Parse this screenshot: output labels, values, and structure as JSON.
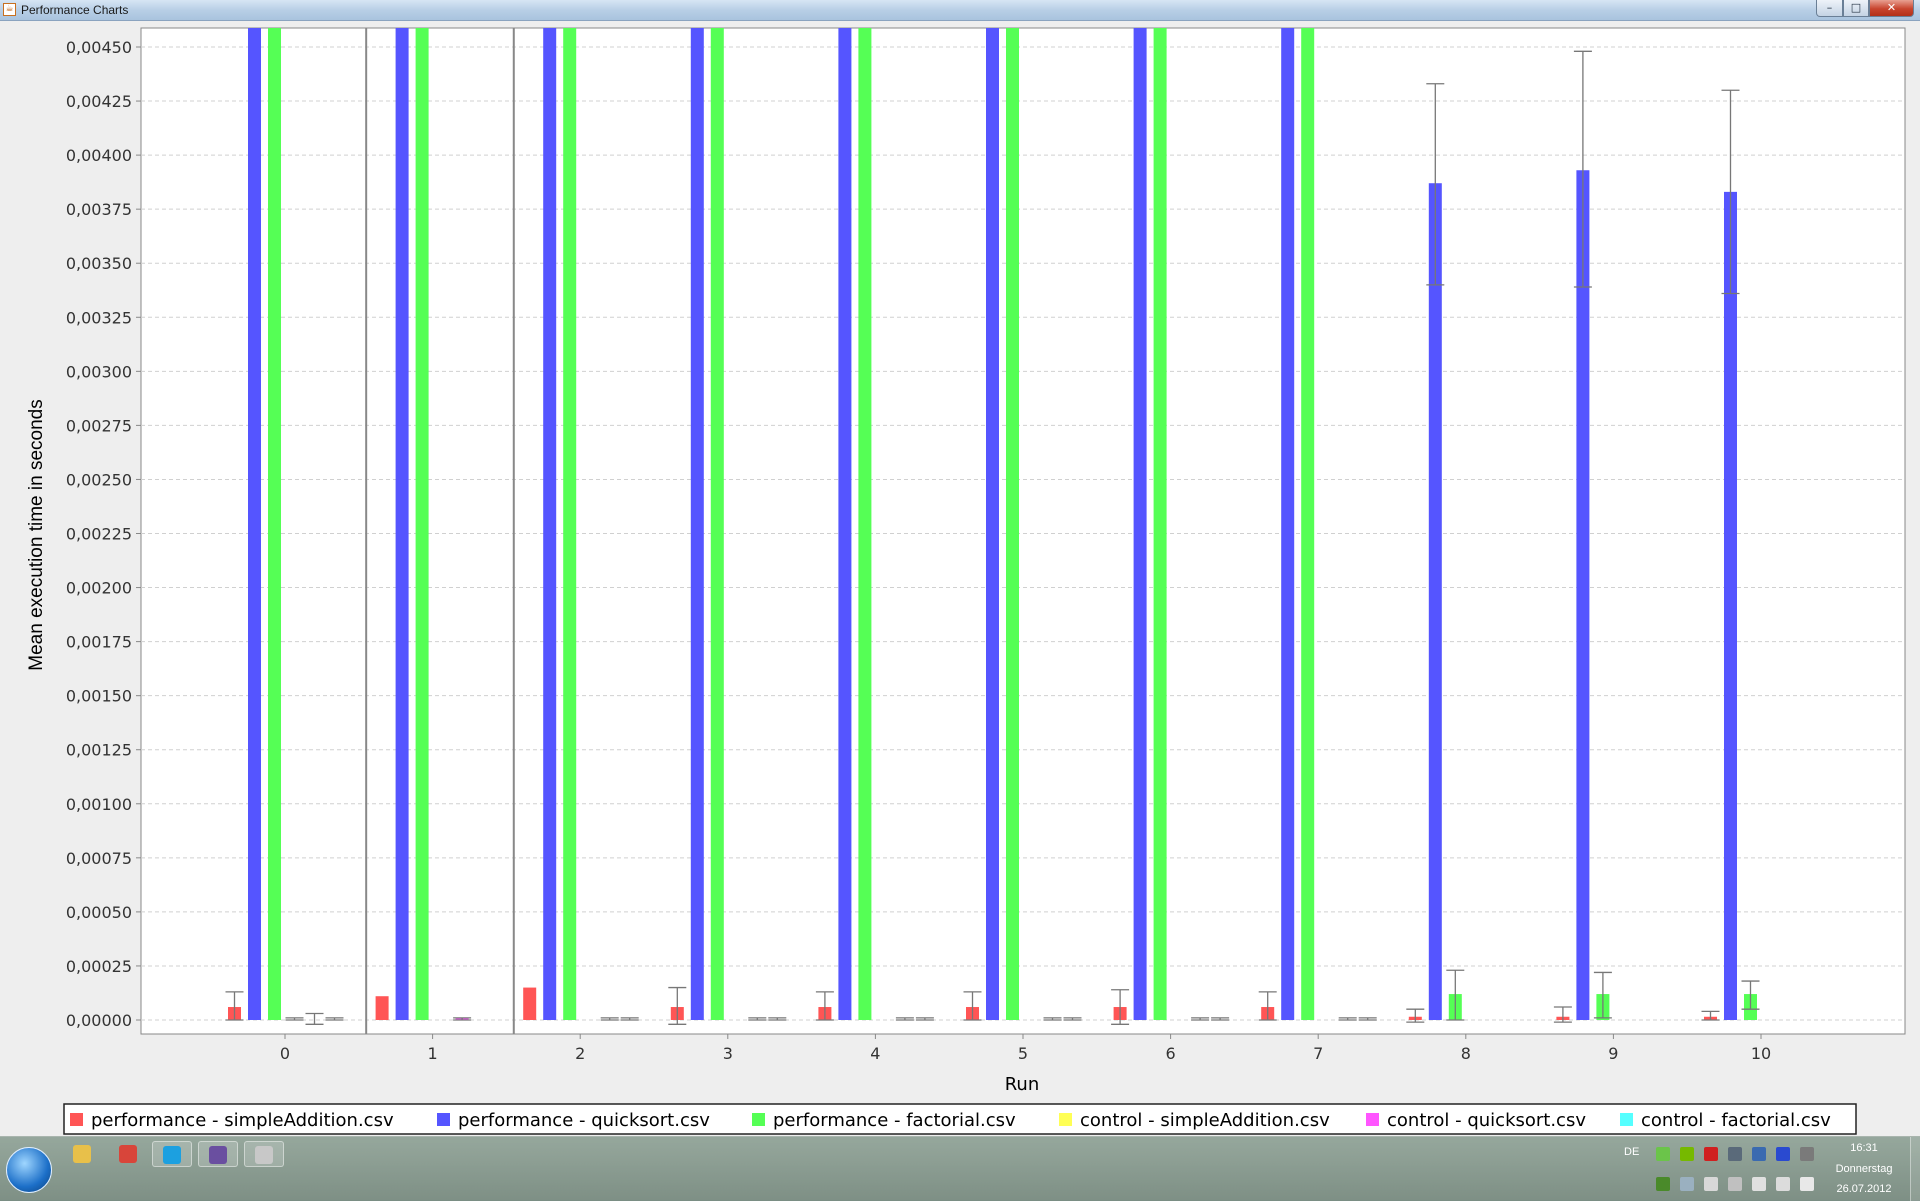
{
  "window": {
    "title": "Performance Charts",
    "minimize_glyph": "–",
    "maximize_glyph": "□",
    "close_glyph": "✕",
    "app_icon": "java-cup-icon"
  },
  "chart_data": {
    "type": "bar",
    "xlabel": "Run",
    "ylabel": "Mean execution time in seconds",
    "ylim": [
      0,
      0.0046
    ],
    "grid": true,
    "legend_position": "bottom",
    "categories": [
      "0",
      "1",
      "2",
      "3",
      "4",
      "5",
      "6",
      "7",
      "8",
      "9",
      "10"
    ],
    "yticks": [
      "0,00000",
      "0,00025",
      "0,00050",
      "0,00075",
      "0,00100",
      "0,00125",
      "0,00150",
      "0,00175",
      "0,00200",
      "0,00225",
      "0,00250",
      "0,00275",
      "0,00300",
      "0,00325",
      "0,00350",
      "0,00375",
      "0,00400",
      "0,00425",
      "0,00450"
    ],
    "series": [
      {
        "name": "performance - simpleAddition.csv",
        "color": "#ff5555",
        "values": [
          6e-05,
          0.00011,
          0.00015,
          6e-05,
          6e-05,
          6e-05,
          6e-05,
          6e-05,
          1.5e-05,
          1.5e-05,
          1.5e-05
        ],
        "err_low": [
          0,
          null,
          null,
          -2e-05,
          0,
          0,
          -2e-05,
          0,
          -1e-05,
          -1e-05,
          0
        ],
        "err_high": [
          0.00013,
          null,
          null,
          0.00015,
          0.00013,
          0.00013,
          0.00014,
          0.00013,
          5e-05,
          6e-05,
          4e-05
        ]
      },
      {
        "name": "performance - quicksort.csv",
        "color": "#5555ff",
        "values": [
          0.0047,
          0.0047,
          0.0047,
          0.0047,
          0.0047,
          0.0047,
          0.0047,
          0.0047,
          0.00387,
          0.00393,
          0.00383
        ],
        "err_low": [
          null,
          null,
          null,
          null,
          null,
          null,
          null,
          null,
          0.0034,
          0.00339,
          0.00336
        ],
        "err_high": [
          null,
          null,
          null,
          null,
          null,
          null,
          null,
          null,
          0.00433,
          0.00448,
          0.0043
        ]
      },
      {
        "name": "performance - factorial.csv",
        "color": "#55ff55",
        "values": [
          0.0047,
          0.0047,
          0.0047,
          0.0047,
          0.0047,
          0.0047,
          0.0047,
          0.0047,
          0.00012,
          0.00012,
          0.00012
        ],
        "err_low": [
          null,
          null,
          null,
          null,
          null,
          null,
          null,
          null,
          0.0,
          1e-05,
          5e-05
        ],
        "err_high": [
          null,
          null,
          null,
          null,
          null,
          null,
          null,
          null,
          0.00023,
          0.00022,
          0.00018
        ]
      },
      {
        "name": "control - simpleAddition.csv",
        "color": "#ffff55",
        "values": [
          0,
          0,
          0,
          0,
          0,
          0,
          0,
          0,
          0,
          0,
          0
        ],
        "err_low": [
          0,
          null,
          null,
          null,
          null,
          null,
          null,
          null,
          null,
          null,
          null
        ],
        "err_high": [
          1e-05,
          null,
          null,
          null,
          null,
          null,
          null,
          null,
          null,
          null,
          null
        ]
      },
      {
        "name": "control - quicksort.csv",
        "color": "#ff55ff",
        "values": [
          0,
          1e-05,
          0,
          0,
          0,
          0,
          0,
          0,
          0,
          0,
          0
        ],
        "err_low": [
          -2e-05,
          0,
          0,
          0,
          0,
          0,
          0,
          0,
          null,
          null,
          null
        ],
        "err_high": [
          3e-05,
          1e-05,
          1e-05,
          1e-05,
          1e-05,
          1e-05,
          1e-05,
          1e-05,
          null,
          null,
          null
        ]
      },
      {
        "name": "control - factorial.csv",
        "color": "#55ffff",
        "values": [
          0,
          0,
          0,
          0,
          0,
          0,
          0,
          0,
          0,
          0,
          0
        ],
        "err_low": [
          0,
          null,
          0,
          0,
          0,
          0,
          0,
          0,
          null,
          null,
          null
        ],
        "err_high": [
          1e-05,
          null,
          1e-05,
          1e-05,
          1e-05,
          1e-05,
          1e-05,
          1e-05,
          null,
          null,
          null
        ]
      }
    ],
    "annotations": [
      {
        "type": "vertical-line",
        "between": [
          "0",
          "1"
        ]
      },
      {
        "type": "vertical-line",
        "between": [
          "1",
          "2"
        ]
      }
    ]
  },
  "taskbar": {
    "items": [
      {
        "name": "explorer-icon",
        "color": "#e8c04a"
      },
      {
        "name": "chrome-icon",
        "color": "#d8453a"
      },
      {
        "name": "skype-icon",
        "color": "#1ca0e0"
      },
      {
        "name": "eclipse-icon",
        "color": "#6a4fa0"
      },
      {
        "name": "java-icon",
        "color": "#c8c8c8"
      }
    ],
    "language": "DE",
    "clock_time": "16:31",
    "clock_day": "Donnerstag",
    "clock_date": "26.07.2012"
  }
}
